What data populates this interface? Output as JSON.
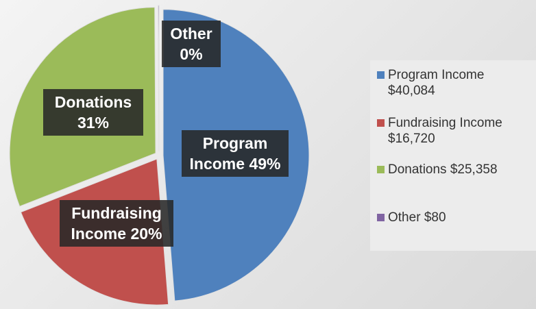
{
  "chart_data": {
    "type": "pie",
    "categories": [
      "Program Income",
      "Fundraising Income",
      "Donations",
      "Other"
    ],
    "values": [
      40084,
      16720,
      25358,
      80
    ],
    "value_labels": [
      "$40,084",
      "$16,720",
      "$25,358",
      "$80"
    ],
    "percent_labels": [
      "49%",
      "20%",
      "31%",
      "0%"
    ],
    "colors": [
      "#4f81bd",
      "#c0504d",
      "#9bbb59",
      "#8064a2"
    ],
    "legend": "right"
  }
}
